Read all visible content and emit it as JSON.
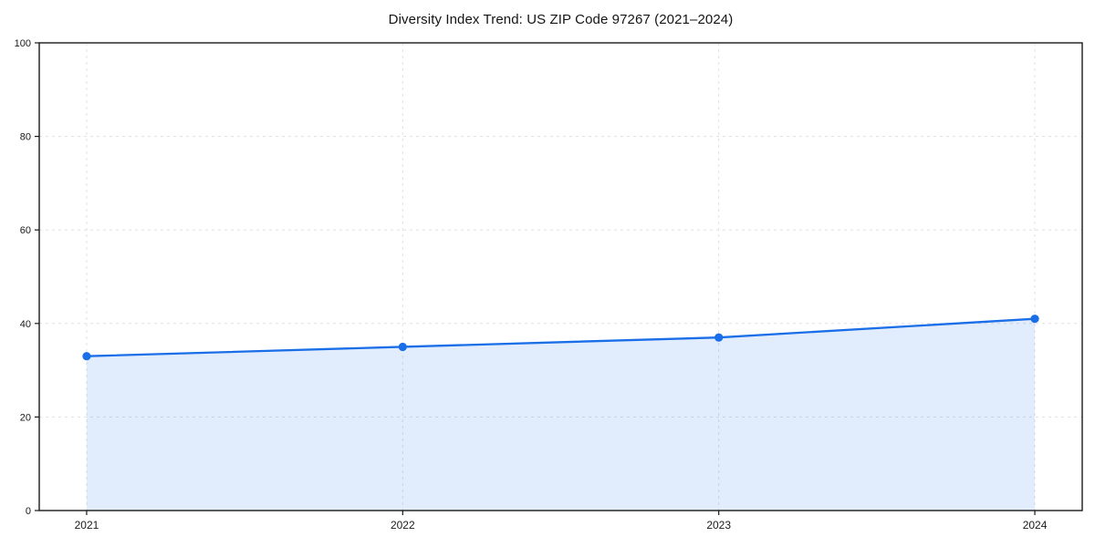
{
  "chart_data": {
    "type": "line",
    "title": "Diversity Index Trend: US ZIP Code 97267 (2021–2024)",
    "x": [
      2021,
      2022,
      2023,
      2024
    ],
    "xticklabels": [
      "2021",
      "2022",
      "2023",
      "2024"
    ],
    "values": [
      33,
      35,
      37,
      41
    ],
    "xlabel": "",
    "ylabel": "",
    "ylim": [
      0,
      100
    ],
    "yticks": [
      0,
      20,
      40,
      60,
      80,
      100
    ],
    "grid": "dashed",
    "legend": "none",
    "area_fill": true,
    "marker": "circle",
    "colors": {
      "line": "#1a6ee8",
      "fill": "rgba(26,110,232,0.13)",
      "grid": "#dcdcdc",
      "axis": "#1a1a1a",
      "text": "#1a1a1a",
      "background": "#ffffff"
    }
  }
}
